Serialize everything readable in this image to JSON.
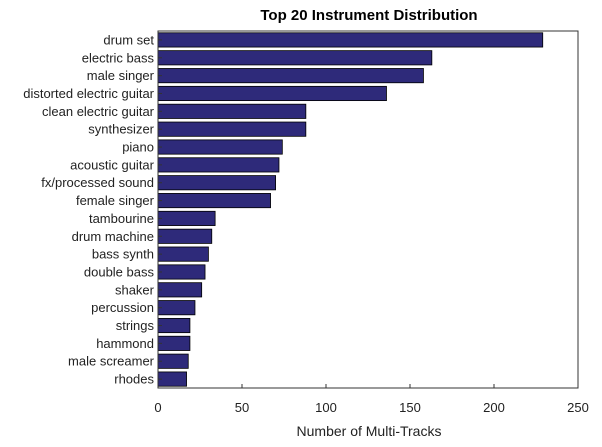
{
  "chart_data": {
    "type": "bar",
    "orientation": "horizontal",
    "title": "Top 20 Instrument Distribution",
    "xlabel": "Number of Multi-Tracks",
    "ylabel": "",
    "xlim": [
      0,
      250
    ],
    "xticks": [
      0,
      50,
      100,
      150,
      200,
      250
    ],
    "grid": false,
    "bar_color": "#2e2a7a",
    "bar_edge_color": "#000000",
    "categories": [
      "drum set",
      "electric bass",
      "male singer",
      "distorted electric guitar",
      "clean electric guitar",
      "synthesizer",
      "piano",
      "acoustic guitar",
      "fx/processed sound",
      "female singer",
      "tambourine",
      "drum machine",
      "bass synth",
      "double bass",
      "shaker",
      "percussion",
      "strings",
      "hammond",
      "male screamer",
      "rhodes"
    ],
    "values": [
      229,
      163,
      158,
      136,
      88,
      88,
      74,
      72,
      70,
      67,
      34,
      32,
      30,
      28,
      26,
      22,
      19,
      19,
      18,
      17
    ]
  }
}
